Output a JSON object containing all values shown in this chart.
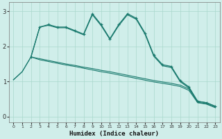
{
  "xlabel": "Humidex (Indice chaleur)",
  "bg_color": "#d0eeea",
  "line_color": "#1a7a6e",
  "grid_color": "#aad8cc",
  "xlim": [
    -0.5,
    23.5
  ],
  "ylim": [
    -0.15,
    3.25
  ],
  "xticks": [
    0,
    1,
    2,
    3,
    4,
    5,
    6,
    7,
    8,
    9,
    10,
    11,
    12,
    13,
    14,
    15,
    16,
    17,
    18,
    19,
    20,
    21,
    22,
    23
  ],
  "yticks": [
    0,
    1,
    2,
    3
  ],
  "line_a_x": [
    0,
    1,
    2,
    3,
    4,
    5,
    6,
    7,
    8,
    9,
    10,
    11,
    12,
    13,
    14,
    15,
    16,
    17,
    18,
    19,
    20,
    21,
    22,
    23
  ],
  "line_a_y": [
    1.05,
    1.28,
    1.7,
    1.65,
    1.6,
    1.55,
    1.5,
    1.46,
    1.41,
    1.37,
    1.32,
    1.28,
    1.23,
    1.18,
    1.13,
    1.08,
    1.03,
    0.99,
    0.95,
    0.9,
    0.79,
    0.44,
    0.4,
    0.3
  ],
  "line_b_x": [
    0,
    1,
    2,
    3,
    4,
    5,
    6,
    7,
    8,
    9,
    10,
    11,
    12,
    13,
    14,
    15,
    16,
    17,
    18,
    19,
    20,
    21,
    22,
    23
  ],
  "line_b_y": [
    1.05,
    1.28,
    1.7,
    1.62,
    1.57,
    1.52,
    1.47,
    1.43,
    1.38,
    1.33,
    1.28,
    1.24,
    1.19,
    1.14,
    1.09,
    1.04,
    0.99,
    0.95,
    0.91,
    0.86,
    0.75,
    0.4,
    0.36,
    0.26
  ],
  "line_c_x": [
    2,
    3,
    4,
    5,
    6,
    7,
    8,
    9,
    10,
    11,
    12,
    13,
    14,
    15,
    16,
    17,
    18,
    19,
    20,
    21,
    22,
    23
  ],
  "line_c_y": [
    1.7,
    2.55,
    2.62,
    2.55,
    2.55,
    2.45,
    2.35,
    2.93,
    2.62,
    2.22,
    2.62,
    2.93,
    2.8,
    2.38,
    1.75,
    1.48,
    1.43,
    1.03,
    0.85,
    0.44,
    0.4,
    0.3
  ],
  "line_d_x": [
    2,
    3,
    4,
    5,
    6,
    7,
    8,
    9,
    10,
    11,
    12,
    13,
    14,
    15,
    16,
    17,
    18,
    19,
    20,
    21,
    22,
    23
  ],
  "line_d_y": [
    1.7,
    2.55,
    2.6,
    2.53,
    2.53,
    2.43,
    2.33,
    2.9,
    2.59,
    2.2,
    2.59,
    2.9,
    2.77,
    2.35,
    1.72,
    1.45,
    1.4,
    1.0,
    0.82,
    0.41,
    0.37,
    0.27
  ]
}
